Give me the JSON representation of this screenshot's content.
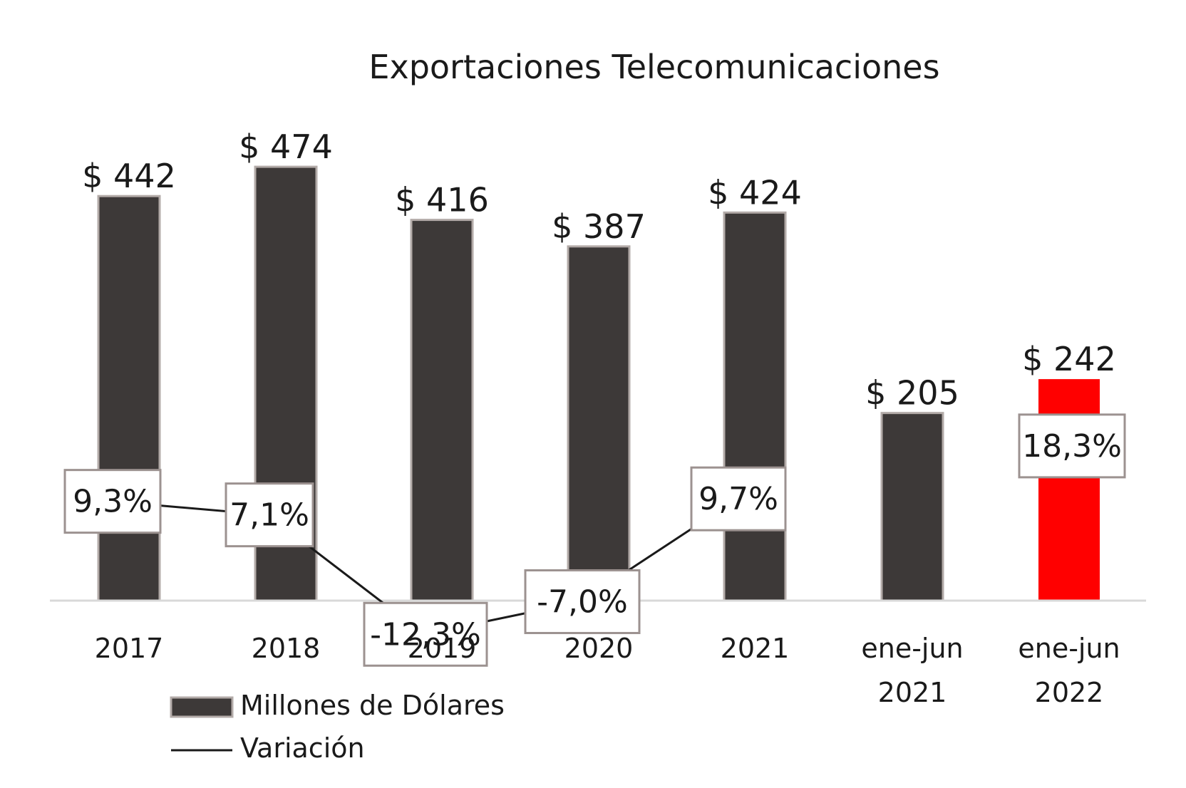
{
  "chart_data": {
    "type": "bar",
    "title": "Exportaciones Telecomunicaciones",
    "categories": [
      [
        "2017"
      ],
      [
        "2018"
      ],
      [
        "2019"
      ],
      [
        "2020"
      ],
      [
        "2021"
      ],
      [
        "ene-jun",
        "2021"
      ],
      [
        "ene-jun",
        "2022"
      ]
    ],
    "series": [
      {
        "name": "Millones de Dólares",
        "type": "bar",
        "values": [
          442,
          474,
          416,
          387,
          424,
          205,
          242
        ],
        "value_labels": [
          "$ 442",
          "$ 474",
          "$ 416",
          "$ 387",
          "$ 424",
          "$ 205",
          "$ 242"
        ],
        "color": "#3d3938",
        "highlight_color": "#ff0000",
        "highlight_index": 6
      },
      {
        "name": "Variación",
        "type": "line",
        "values": [
          9.3,
          7.1,
          -12.3,
          -7.0,
          9.7,
          null,
          18.3
        ],
        "value_labels": [
          "9,3%",
          "7,1%",
          "-12,3%",
          "-7,0%",
          "9,7%",
          null,
          "18,3%"
        ],
        "color": "#1a1a1a"
      }
    ],
    "ylim": [
      0,
      520
    ],
    "variation_ylim": [
      -40,
      50
    ],
    "grid": false,
    "legend_position": "bottom-left"
  }
}
